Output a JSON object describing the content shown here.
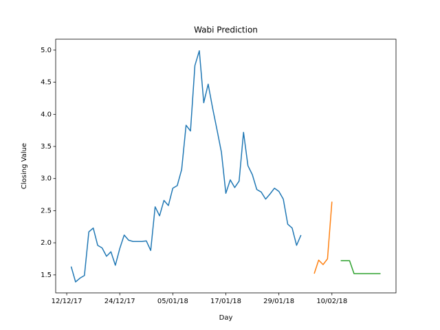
{
  "chart_data": {
    "type": "line",
    "title": "Wabi Prediction",
    "x_label": "Day",
    "y_label": "Closing Value",
    "xlim": [
      "2017-12-09T12:00",
      "2018-02-24T12:00"
    ],
    "xticks": [
      {
        "value": "2017-12-12",
        "label": "12/12/17"
      },
      {
        "value": "2017-12-24",
        "label": "24/12/17"
      },
      {
        "value": "2018-01-05",
        "label": "05/01/18"
      },
      {
        "value": "2018-01-17",
        "label": "17/01/18"
      },
      {
        "value": "2018-01-29",
        "label": "29/01/18"
      },
      {
        "value": "2018-02-10",
        "label": "10/02/18"
      }
    ],
    "ylim": [
      1.22,
      5.17
    ],
    "yticks": [
      1.5,
      {
        "value": 2,
        "label": "2.0"
      },
      2.5,
      {
        "value": 3,
        "label": "3.0"
      },
      3.5,
      {
        "value": 4,
        "label": "4.0"
      },
      4.5,
      {
        "value": 5,
        "label": "5.0"
      }
    ],
    "series": [
      {
        "color": "#1f77b4",
        "x": [
          "2017-12-13",
          "2017-12-14",
          "2017-12-15",
          "2017-12-16",
          "2017-12-17",
          "2017-12-18",
          "2017-12-19",
          "2017-12-20",
          "2017-12-21",
          "2017-12-22",
          "2017-12-23",
          "2017-12-24",
          "2017-12-25",
          "2017-12-26",
          "2017-12-27",
          "2017-12-28",
          "2017-12-29",
          "2017-12-30",
          "2017-12-31",
          "2018-01-01",
          "2018-01-02",
          "2018-01-03",
          "2018-01-04",
          "2018-01-05",
          "2018-01-06",
          "2018-01-07",
          "2018-01-08",
          "2018-01-09",
          "2018-01-10",
          "2018-01-11",
          "2018-01-12",
          "2018-01-13",
          "2018-01-14",
          "2018-01-15",
          "2018-01-16",
          "2018-01-17",
          "2018-01-18",
          "2018-01-19",
          "2018-01-20",
          "2018-01-21",
          "2018-01-22",
          "2018-01-23",
          "2018-01-24",
          "2018-01-25",
          "2018-01-26",
          "2018-01-27",
          "2018-01-28",
          "2018-01-29",
          "2018-01-30",
          "2018-01-31",
          "2018-02-01",
          "2018-02-02",
          "2018-02-03"
        ],
        "values": [
          1.63,
          1.39,
          1.45,
          1.49,
          2.17,
          2.23,
          1.96,
          1.92,
          1.79,
          1.86,
          1.65,
          1.91,
          2.12,
          2.04,
          2.02,
          2.02,
          2.02,
          2.03,
          1.88,
          2.56,
          2.42,
          2.66,
          2.58,
          2.85,
          2.89,
          3.14,
          3.83,
          3.74,
          4.76,
          4.99,
          4.18,
          4.47,
          4.1,
          3.76,
          3.41,
          2.77,
          2.98,
          2.86,
          2.96,
          3.72,
          3.2,
          3.06,
          2.83,
          2.79,
          2.68,
          2.76,
          2.85,
          2.8,
          2.68,
          2.29,
          2.23,
          1.96,
          2.12
        ]
      },
      {
        "color": "#ff7f0e",
        "x": [
          "2018-02-06",
          "2018-02-07",
          "2018-02-08",
          "2018-02-09",
          "2018-02-10"
        ],
        "values": [
          1.52,
          1.73,
          1.66,
          1.75,
          2.64
        ]
      },
      {
        "color": "#2ca02c",
        "x": [
          "2018-02-12",
          "2018-02-13",
          "2018-02-14",
          "2018-02-15",
          "2018-02-16",
          "2018-02-17",
          "2018-02-18",
          "2018-02-19",
          "2018-02-20",
          "2018-02-21"
        ],
        "values": [
          1.72,
          1.72,
          1.72,
          1.52,
          1.52,
          1.52,
          1.52,
          1.52,
          1.52,
          1.52
        ]
      }
    ]
  }
}
